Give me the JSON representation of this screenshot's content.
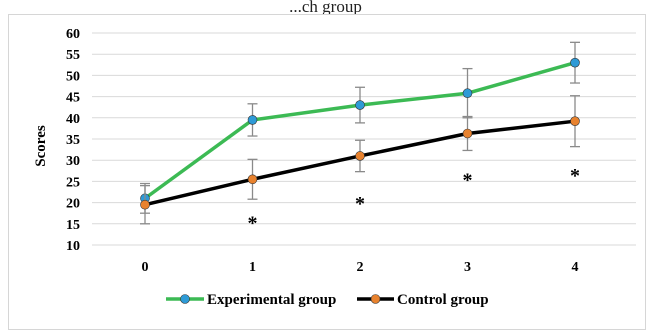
{
  "page": {
    "partial_title": "...ch group"
  },
  "chart_data": {
    "type": "line",
    "title": "",
    "xlabel": "",
    "ylabel": "Scores",
    "categories": [
      "0",
      "1",
      "2",
      "3",
      "4"
    ],
    "ylim": [
      10,
      60
    ],
    "yticks": [
      "10",
      "15",
      "20",
      "25",
      "30",
      "35",
      "40",
      "45",
      "50",
      "55",
      "60"
    ],
    "grid": true,
    "legend_position": "bottom",
    "series": [
      {
        "name": "Experimental group",
        "color": "#3cba54",
        "marker_color": "#2e9ad6",
        "values": [
          21,
          39.5,
          43,
          45.8,
          53
        ],
        "errors": [
          3.5,
          3.8,
          4.2,
          5.8,
          4.8
        ]
      },
      {
        "name": "Control group",
        "color": "#000000",
        "marker_color": "#e8822e",
        "values": [
          19.5,
          25.5,
          31,
          36.3,
          39.2
        ],
        "errors": [
          4.5,
          4.7,
          3.7,
          4.0,
          6.0
        ]
      }
    ],
    "annotations": [
      {
        "x": "1",
        "y": 15.5,
        "text": "*"
      },
      {
        "x": "2",
        "y": 20.2,
        "text": "*"
      },
      {
        "x": "3",
        "y": 25.7,
        "text": "*"
      },
      {
        "x": "4",
        "y": 26.7,
        "text": "*"
      }
    ]
  }
}
